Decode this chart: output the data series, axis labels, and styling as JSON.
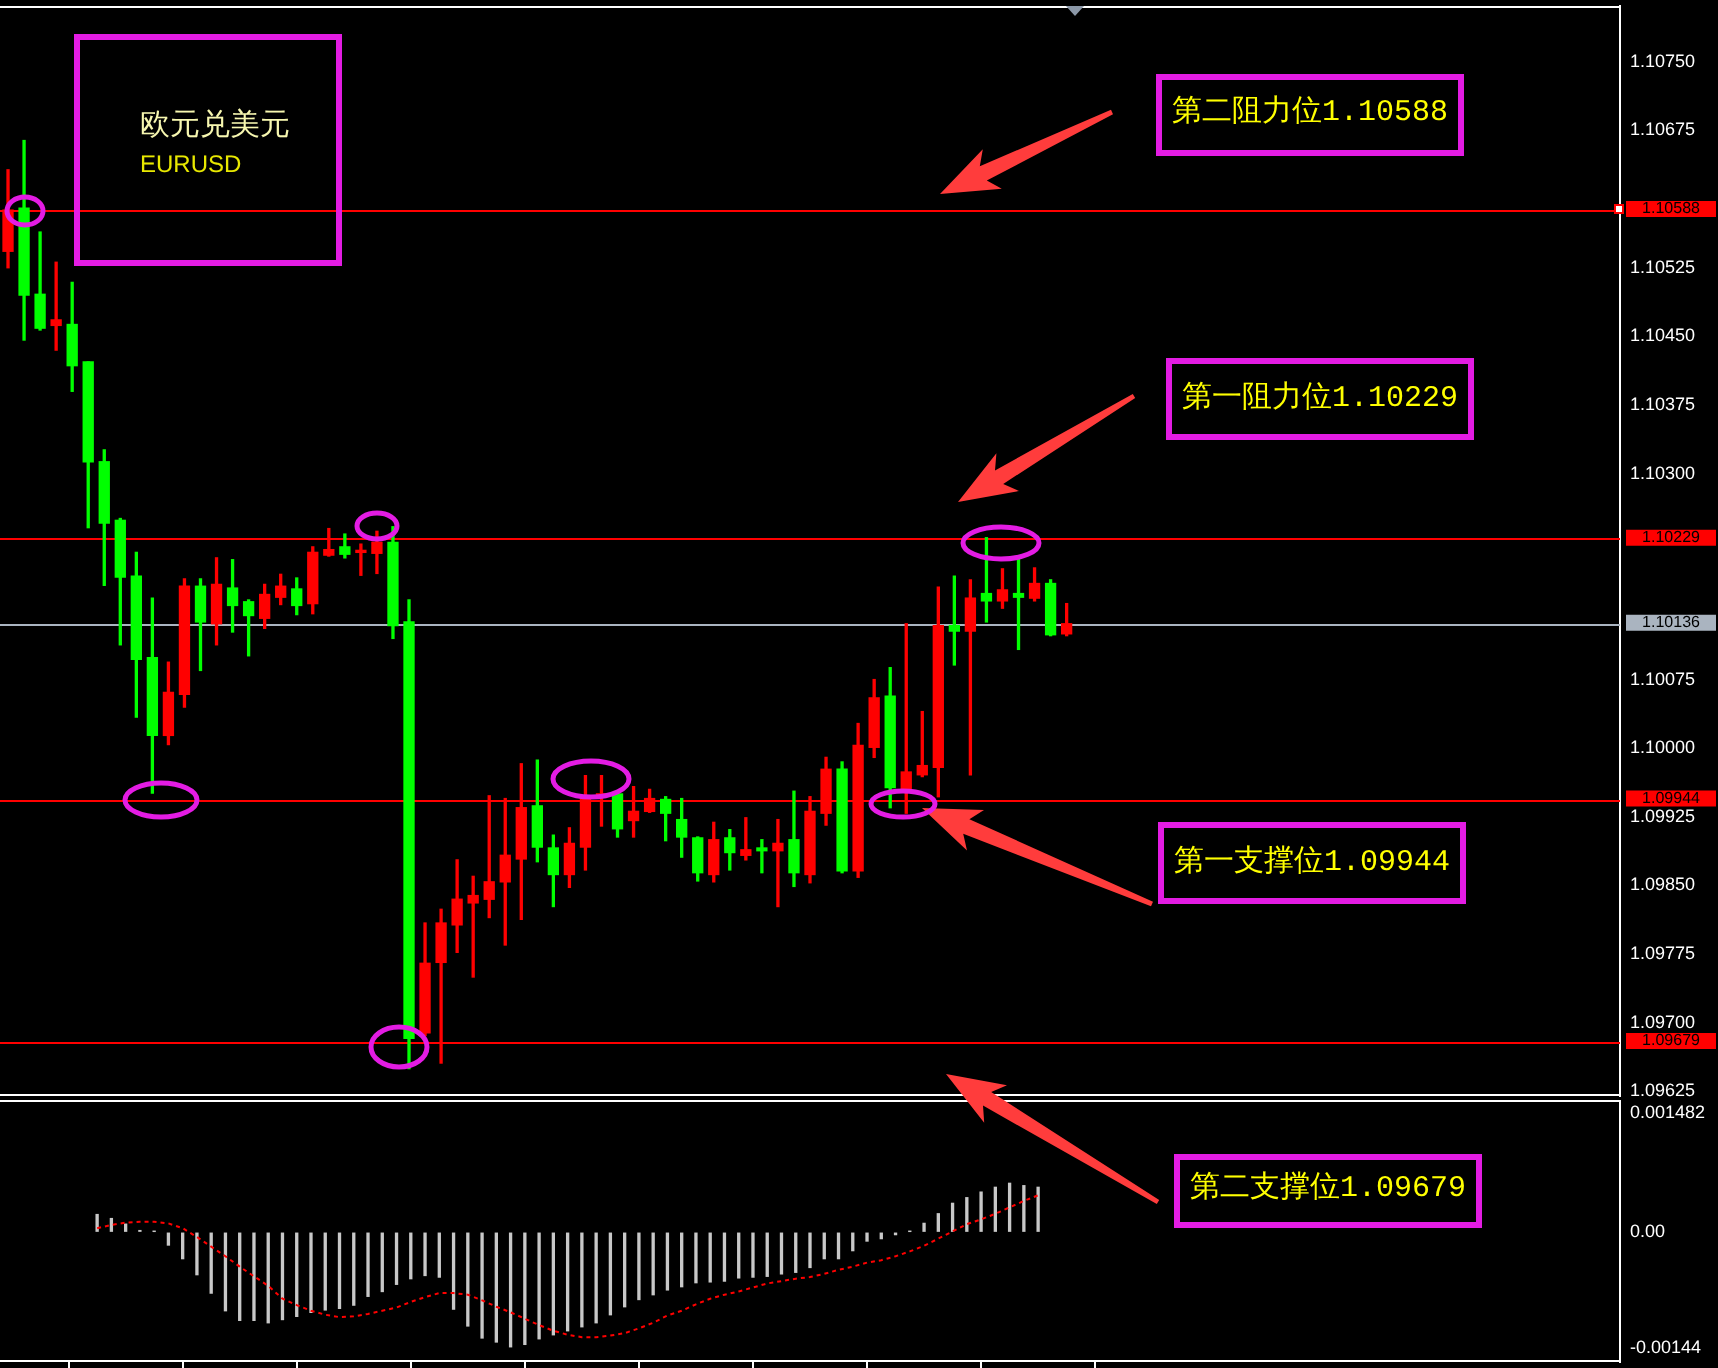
{
  "chart_data": [
    {
      "type": "candlestick",
      "title": "欧元兑美元",
      "subtitle": "EURUSD",
      "categories": [
        null,
        null,
        null,
        null,
        null,
        null,
        null,
        null,
        null,
        null,
        null,
        null,
        null,
        null,
        null,
        null,
        null,
        null,
        null,
        null,
        null,
        null,
        null,
        null,
        null,
        null,
        null,
        null,
        null,
        null,
        null,
        null,
        null,
        null,
        null,
        null,
        null,
        null,
        null,
        null,
        null,
        null,
        null,
        null,
        null,
        null,
        null,
        null,
        null,
        null,
        null,
        null,
        null,
        null,
        null,
        null,
        null,
        null,
        null,
        null,
        null,
        null,
        null,
        null,
        null,
        null,
        null,
        null,
        null,
        null,
        null,
        null,
        null,
        null,
        null,
        null,
        null,
        null,
        null,
        null,
        null,
        null,
        null,
        null,
        null,
        null,
        null,
        null,
        null,
        null,
        null,
        null,
        null,
        null,
        null,
        null,
        null,
        null,
        null,
        null,
        null
      ],
      "ohlc": [
        [
          1.10543,
          1.10632,
          1.10525,
          1.10588
        ],
        [
          1.1059,
          1.10664,
          1.10446,
          1.10495
        ],
        [
          1.10496,
          1.10564,
          1.10457,
          1.10459
        ],
        [
          1.10462,
          1.10531,
          1.10435,
          1.10468
        ],
        [
          1.10463,
          1.10509,
          1.1039,
          1.10418
        ],
        [
          1.10422,
          1.10422,
          1.10241,
          1.10313
        ],
        [
          1.10313,
          1.10326,
          1.10178,
          1.10246
        ],
        [
          1.10249,
          1.10251,
          1.10113,
          1.10187
        ],
        [
          1.10188,
          1.10214,
          1.10034,
          1.10097
        ],
        [
          1.10099,
          1.10164,
          1.09951,
          1.10014
        ],
        [
          1.10014,
          1.10094,
          1.10004,
          1.10061
        ],
        [
          1.10059,
          1.10185,
          1.10045,
          1.10177
        ],
        [
          1.10177,
          1.10185,
          1.10085,
          1.10138
        ],
        [
          1.10136,
          1.10208,
          1.10113,
          1.10179
        ],
        [
          1.10175,
          1.10206,
          1.10127,
          1.10156
        ],
        [
          1.1016,
          1.10162,
          1.10101,
          1.10145
        ],
        [
          1.10142,
          1.10179,
          1.10131,
          1.10168
        ],
        [
          1.10165,
          1.1019,
          1.10157,
          1.10177
        ],
        [
          1.10174,
          1.10186,
          1.10146,
          1.10156
        ],
        [
          1.10158,
          1.1022,
          1.10147,
          1.10214
        ],
        [
          1.10211,
          1.1024,
          1.1021,
          1.10217
        ],
        [
          1.1022,
          1.10234,
          1.10208,
          1.10212
        ],
        [
          1.10214,
          1.10223,
          1.10189,
          1.10216
        ],
        [
          1.10213,
          1.10237,
          1.10191,
          1.10225
        ],
        [
          1.10225,
          1.10242,
          1.1012,
          1.10134
        ],
        [
          1.10138,
          1.10162,
          1.0965,
          1.09683
        ],
        [
          1.09689,
          1.09809,
          1.09686,
          1.09765
        ],
        [
          1.09766,
          1.09824,
          1.09656,
          1.09809
        ],
        [
          1.09807,
          1.09878,
          1.09777,
          1.09835
        ],
        [
          1.09831,
          1.0986,
          1.0975,
          1.09839
        ],
        [
          1.09835,
          1.09948,
          1.09815,
          1.09854
        ],
        [
          1.09854,
          1.09945,
          1.09785,
          1.09883
        ],
        [
          1.09879,
          1.09983,
          1.09813,
          1.09935
        ],
        [
          1.09937,
          1.09987,
          1.09876,
          1.09892
        ],
        [
          1.09891,
          1.09905,
          1.09827,
          1.09862
        ],
        [
          1.09862,
          1.09913,
          1.09848,
          1.09896
        ],
        [
          1.09892,
          1.0997,
          1.09867,
          1.09948
        ],
        [
          1.09948,
          1.0997,
          1.09915,
          1.0995
        ],
        [
          1.0995,
          1.09953,
          1.09903,
          1.09912
        ],
        [
          1.09921,
          1.09958,
          1.09903,
          1.09931
        ],
        [
          1.09931,
          1.09955,
          1.0993,
          1.09945
        ],
        [
          1.09944,
          1.09947,
          1.09899,
          1.09929
        ],
        [
          1.09922,
          1.09945,
          1.09881,
          1.09903
        ],
        [
          1.09902,
          1.09903,
          1.09855,
          1.09864
        ],
        [
          1.09862,
          1.09919,
          1.09854,
          1.099
        ],
        [
          1.09902,
          1.09911,
          1.09867,
          1.09886
        ],
        [
          1.09883,
          1.09924,
          1.09878,
          1.09889
        ],
        [
          1.09891,
          1.099,
          1.09864,
          1.09888
        ],
        [
          1.09888,
          1.09922,
          1.09827,
          1.09896
        ],
        [
          1.099,
          1.09953,
          1.09849,
          1.09864
        ],
        [
          1.09862,
          1.09947,
          1.09853,
          1.09931
        ],
        [
          1.09929,
          1.0999,
          1.09916,
          1.09977
        ],
        [
          1.09977,
          1.09985,
          1.09864,
          1.09866
        ],
        [
          1.09866,
          1.10027,
          1.09859,
          1.10003
        ],
        [
          1.10001,
          1.10075,
          1.0999,
          1.10055
        ],
        [
          1.10057,
          1.10088,
          1.09935,
          1.09957
        ],
        [
          1.09953,
          1.10136,
          1.09929,
          1.09974
        ],
        [
          1.09971,
          1.1004,
          1.09969,
          1.09981
        ],
        [
          1.09979,
          1.10176,
          1.09947,
          1.10134
        ],
        [
          1.10134,
          1.10188,
          1.10091,
          1.10128
        ],
        [
          1.10128,
          1.10184,
          1.09971,
          1.10164
        ],
        [
          1.10169,
          1.1023,
          1.10138,
          1.10161
        ],
        [
          1.10161,
          1.10196,
          1.10153,
          1.10173
        ],
        [
          1.10169,
          1.10209,
          1.10108,
          1.10165
        ],
        [
          1.10164,
          1.10197,
          1.10161,
          1.1018
        ],
        [
          1.1018,
          1.10184,
          1.10123,
          1.10124
        ],
        [
          1.10125,
          1.10158,
          1.10123,
          1.10136
        ],
        null,
        null,
        null,
        null,
        null,
        null,
        null,
        null,
        null,
        null,
        null,
        null,
        null,
        null,
        null,
        null,
        null,
        null,
        null,
        null,
        null,
        null,
        null,
        null,
        null,
        null,
        null,
        null,
        null,
        null,
        null,
        null,
        null,
        null
      ],
      "colors": [
        "#ff0000",
        "#00ff00",
        "#00ff00",
        "#ff0000",
        "#00ff00",
        "#00ff00",
        "#00ff00",
        "#00ff00",
        "#00ff00",
        "#00ff00",
        "#ff0000",
        "#ff0000",
        "#00ff00",
        "#ff0000",
        "#00ff00",
        "#00ff00",
        "#ff0000",
        "#ff0000",
        "#00ff00",
        "#ff0000",
        "#ff0000",
        "#00ff00",
        "#ff0000",
        "#ff0000",
        "#00ff00",
        "#00ff00",
        "#ff0000",
        "#ff0000",
        "#ff0000",
        "#ff0000",
        "#ff0000",
        "#ff0000",
        "#ff0000",
        "#00ff00",
        "#00ff00",
        "#ff0000",
        "#ff0000",
        "#ff0000",
        "#00ff00",
        "#ff0000",
        "#ff0000",
        "#00ff00",
        "#00ff00",
        "#00ff00",
        "#ff0000",
        "#00ff00",
        "#ff0000",
        "#00ff00",
        "#ff0000",
        "#00ff00",
        "#ff0000",
        "#ff0000",
        "#00ff00",
        "#ff0000",
        "#ff0000",
        "#00ff00",
        "#ff0000",
        "#ff0000",
        "#ff0000",
        "#00ff00",
        "#ff0000",
        "#00ff00",
        "#ff0000",
        "#00ff00",
        "#ff0000",
        "#00ff00",
        "#ff0000",
        null,
        null,
        null,
        null,
        null,
        null,
        null,
        null,
        null,
        null,
        null,
        null,
        null,
        null,
        null,
        null,
        null,
        null,
        null,
        null,
        null,
        null,
        null,
        null,
        null,
        null,
        null,
        null,
        null,
        null,
        null,
        null,
        null,
        null
      ],
      "ylim": [
        1.0962,
        1.10811
      ],
      "yticks": [
        {
          "value": 1.1075,
          "label": "1.10750"
        },
        1.10675,
        1.10525,
        {
          "value": 1.1045,
          "label": "1.10450"
        },
        1.10375,
        {
          "value": 1.103,
          "label": "1.10300"
        },
        1.10075,
        {
          "value": 1.1,
          "label": "1.10000"
        },
        1.09925,
        {
          "value": 1.0985,
          "label": "1.09850"
        },
        1.09775,
        {
          "value": 1.097,
          "label": "1.09700"
        },
        1.09625
      ],
      "ref_lines": [
        {
          "axis": "y",
          "value": 1.10588,
          "label": "1.10588",
          "color": "#ff0000"
        },
        {
          "axis": "y",
          "value": 1.10229,
          "label": "1.10229",
          "color": "#ff0000"
        },
        {
          "axis": "y",
          "value": 1.10136,
          "label": "1.10136",
          "color": "#aab4c0"
        },
        {
          "axis": "y",
          "value": 1.09944,
          "label": "1.09944",
          "color": "#ff0000"
        },
        {
          "axis": "y",
          "value": 1.09679,
          "label": "1.09679",
          "color": "#ff0000"
        }
      ],
      "annotations": [
        "第二阻力位1.10588",
        "第一阻力位1.10229",
        "第一支撑位1.09944",
        "第二支撑位1.09679"
      ],
      "tick_labels": "y"
    },
    {
      "type": "bar",
      "categories": [
        null,
        null,
        null,
        null,
        null,
        null,
        null,
        null,
        null,
        null,
        null,
        null,
        null,
        null,
        null,
        null,
        null,
        null,
        null,
        null,
        null,
        null,
        null,
        null,
        null,
        null,
        null,
        null,
        null,
        null,
        null,
        null,
        null,
        null,
        null,
        null,
        null,
        null,
        null,
        null,
        null,
        null,
        null,
        null,
        null,
        null,
        null,
        null,
        null,
        null,
        null,
        null,
        null,
        null,
        null,
        null,
        null,
        null,
        null,
        null,
        null,
        null,
        null,
        null,
        null,
        null,
        null,
        null,
        null,
        null,
        null,
        null,
        null,
        null,
        null,
        null,
        null,
        null,
        null,
        null,
        null,
        null,
        null,
        null,
        null,
        null,
        null,
        null,
        null,
        null,
        null,
        null,
        null,
        null,
        null,
        null,
        null,
        null,
        null,
        null,
        null
      ],
      "series": [
        {
          "type": "bar",
          "color": "#c8c8c8",
          "values": [
            0.00022,
            0.00017,
            0.0001,
            2e-05,
            1e-05,
            -0.00016,
            -0.00033,
            -0.00053,
            -0.00076,
            -0.00098,
            -0.0011,
            -0.0011,
            -0.00113,
            -0.00109,
            -0.00105,
            -0.001,
            -0.00097,
            -0.00095,
            -0.00091,
            -0.0008,
            -0.00074,
            -0.00065,
            -0.00058,
            -0.00054,
            -0.00056,
            -0.00096,
            -0.00117,
            -0.00132,
            -0.00137,
            -0.00143,
            -0.0014,
            -0.00133,
            -0.00128,
            -0.00123,
            -0.00118,
            -0.00113,
            -0.00103,
            -0.00093,
            -0.00084,
            -0.00078,
            -0.00072,
            -0.00068,
            -0.00063,
            -0.00062,
            -0.00061,
            -0.00057,
            -0.00056,
            -0.00055,
            -0.00052,
            -0.0005,
            -0.00044,
            -0.00033,
            -0.00033,
            -0.00023,
            -0.00011,
            -8e-05,
            -3e-05,
            1e-05,
            0.00011,
            0.00023,
            0.00036,
            0.00043,
            0.0005,
            0.00056,
            0.00061,
            0.00058,
            0.00056,
            null,
            null,
            null,
            null,
            null,
            null,
            null,
            null,
            null,
            null,
            null,
            null,
            null,
            null,
            null,
            null,
            null,
            null,
            null,
            null,
            null,
            null,
            null,
            null,
            null,
            null,
            null,
            null,
            null,
            null,
            null,
            null,
            null,
            null
          ]
        },
        {
          "type": "line",
          "color": "#ff0000",
          "line_style": "dotted",
          "values": [
            5e-05,
            9e-05,
            0.00012,
            0.00013,
            0.00013,
            0.00011,
            5e-05,
            -6e-05,
            -0.00018,
            -0.0003,
            -0.00043,
            -0.00055,
            -0.00067,
            -0.00083,
            -0.00091,
            -0.00098,
            -0.00103,
            -0.00106,
            -0.00105,
            -0.00102,
            -0.00098,
            -0.00094,
            -0.00087,
            -0.00081,
            -0.00076,
            -0.00076,
            -0.00078,
            -0.00085,
            -0.00093,
            -0.001,
            -0.00108,
            -0.00116,
            -0.00123,
            -0.00128,
            -0.00131,
            -0.00131,
            -0.00129,
            -0.00126,
            -0.0012,
            -0.00113,
            -0.00104,
            -0.00098,
            -0.0009,
            -0.00083,
            -0.00078,
            -0.00074,
            -0.00069,
            -0.00064,
            -0.00061,
            -0.00058,
            -0.00056,
            -0.00052,
            -0.00047,
            -0.00043,
            -0.00038,
            -0.00035,
            -0.0003,
            -0.00024,
            -0.00017,
            -8e-05,
            1e-05,
            0.0001,
            0.00016,
            0.00023,
            0.00031,
            0.00039,
            0.00046,
            null,
            null,
            null,
            null,
            null,
            null,
            null,
            null,
            null,
            null,
            null,
            null,
            null,
            null,
            null,
            null,
            null,
            null,
            null,
            null,
            null,
            null,
            null,
            null,
            null,
            null,
            null,
            null,
            null,
            null,
            null,
            null,
            null,
            null
          ]
        }
      ],
      "ylim": [
        -0.00162,
        0.00165
      ],
      "yticks": [
        0.001482,
        {
          "value": 0,
          "label": "0.00"
        },
        -0.00144
      ],
      "tick_labels": "y"
    }
  ]
}
